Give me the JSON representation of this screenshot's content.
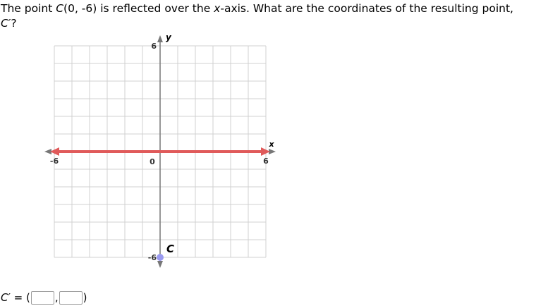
{
  "question": {
    "text_1": "The point ",
    "point_label": "C",
    "text_2": "(0, -6) is reflected over the ",
    "axis_word": "x",
    "text_3": "-axis. What are the coordinates of the resulting point, ",
    "result_label": "C′",
    "text_4": "?"
  },
  "graph": {
    "x_axis_label": "x",
    "y_axis_label": "y",
    "tick_labels": {
      "x_min": "-6",
      "x_max": "6",
      "origin": "0",
      "y_max": "6",
      "y_min": "-6"
    },
    "x_range": [
      -6,
      6
    ],
    "y_range": [
      -6,
      6
    ],
    "grid_step": 1,
    "point": {
      "label": "C",
      "x": 0,
      "y": -6,
      "color": "#9a9af0"
    },
    "drawn_line": {
      "y": 0,
      "color": "#e05a5a",
      "arrows": "both"
    },
    "colors": {
      "grid": "#d0d0d0",
      "axis": "#777777"
    }
  },
  "answer": {
    "label": "C′",
    "equals": " = (",
    "comma": ",",
    "close": ")",
    "x_value": "",
    "y_value": ""
  }
}
